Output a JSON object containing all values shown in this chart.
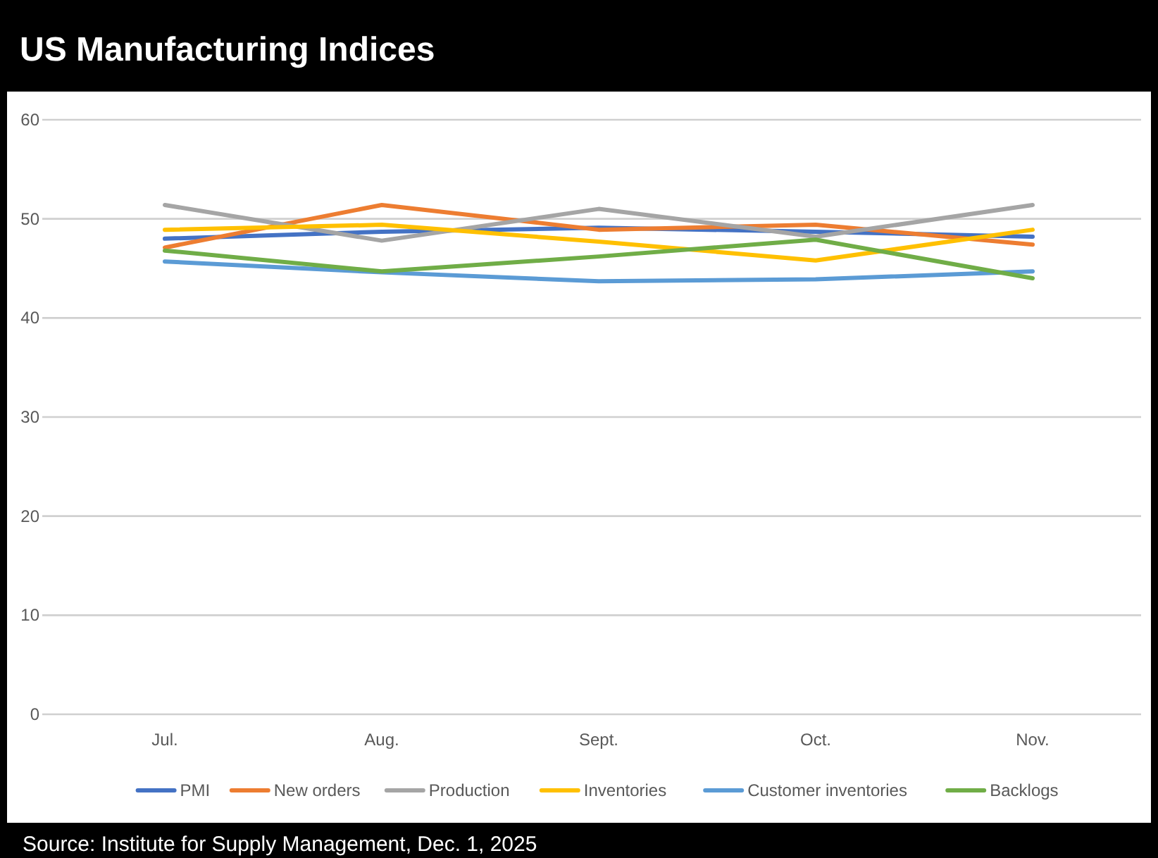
{
  "chart_data": {
    "type": "line",
    "title": "US Manufacturing Indices",
    "categories": [
      "Jul.",
      "Aug.",
      "Sept.",
      "Oct.",
      "Nov."
    ],
    "series": [
      {
        "name": "PMI",
        "color": "#4472c4",
        "values": [
          48.0,
          48.7,
          49.1,
          48.7,
          48.2
        ]
      },
      {
        "name": "New orders",
        "color": "#ed7d31",
        "values": [
          47.1,
          51.4,
          48.9,
          49.4,
          47.4
        ]
      },
      {
        "name": "Production",
        "color": "#a5a5a5",
        "values": [
          51.4,
          47.8,
          51.0,
          48.2,
          51.4
        ]
      },
      {
        "name": "Inventories",
        "color": "#ffc000",
        "values": [
          48.9,
          49.4,
          47.7,
          45.8,
          48.9
        ]
      },
      {
        "name": "Customer inventories",
        "color": "#5b9bd5",
        "values": [
          45.7,
          44.6,
          43.7,
          43.9,
          44.7
        ]
      },
      {
        "name": "Backlogs",
        "color": "#70ad47",
        "values": [
          46.8,
          44.7,
          46.2,
          47.9,
          44.0
        ]
      }
    ],
    "ylim": [
      0,
      60
    ],
    "yticks": [
      0,
      10,
      20,
      30,
      40,
      50,
      60
    ],
    "grid": "y",
    "legend": "bottom",
    "marker": "none",
    "line_style": "solid",
    "annotations": [
      "Source: Institute for Supply Management, Dec. 1, 2025"
    ]
  }
}
